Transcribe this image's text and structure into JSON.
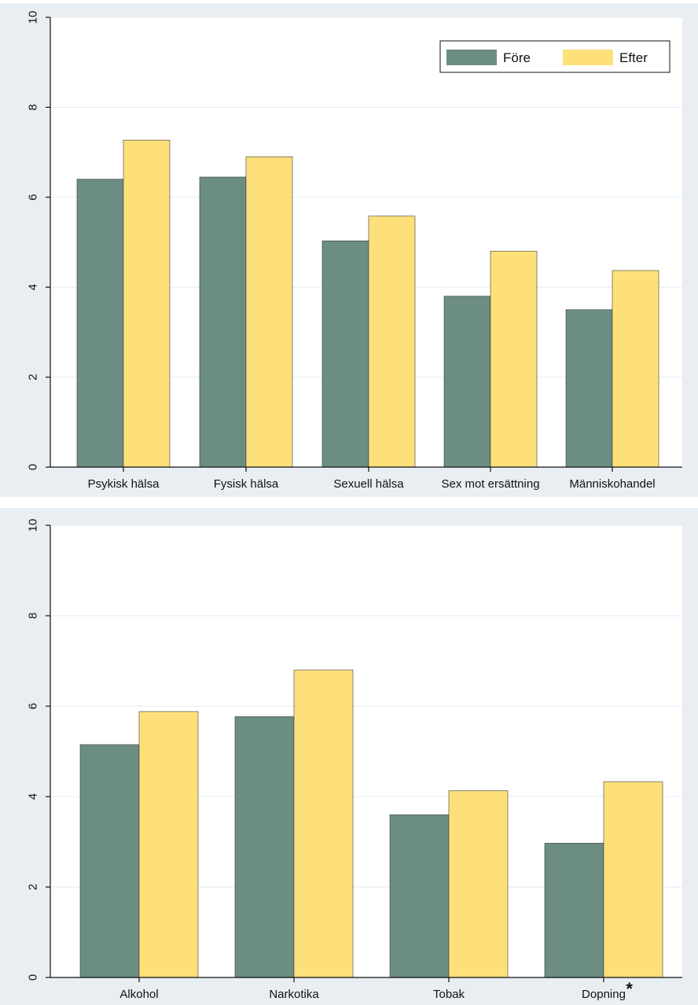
{
  "colors": {
    "fore": "#6b8d82",
    "efter": "#fde07a",
    "panel_bg": "#e9eef2",
    "plot_bg": "#ffffff",
    "grid": "#e6eaee",
    "axis": "#111111"
  },
  "chart_data": [
    {
      "type": "bar",
      "categories": [
        "Psykisk hälsa",
        "Fysisk hälsa",
        "Sexuell hälsa",
        "Sex mot ersättning",
        "Människohandel"
      ],
      "series": [
        {
          "name": "Före",
          "values": [
            6.4,
            6.45,
            5.03,
            3.8,
            3.5
          ]
        },
        {
          "name": "Efter",
          "values": [
            7.27,
            6.9,
            5.58,
            4.8,
            4.37
          ]
        }
      ],
      "ylim": [
        0,
        10
      ],
      "yticks": [
        "0",
        "2",
        "4",
        "6",
        "8",
        "10"
      ],
      "grid": true,
      "legend": "top-right",
      "title": "",
      "xlabel": "",
      "ylabel": ""
    },
    {
      "type": "bar",
      "categories": [
        "Alkohol",
        "Narkotika",
        "Tobak",
        "Dopning"
      ],
      "category_marks": [
        "",
        "",
        "",
        "*"
      ],
      "series": [
        {
          "name": "Före",
          "values": [
            5.15,
            5.77,
            3.6,
            2.97
          ]
        },
        {
          "name": "Efter",
          "values": [
            5.88,
            6.8,
            4.13,
            4.33
          ]
        }
      ],
      "ylim": [
        0,
        10
      ],
      "yticks": [
        "0",
        "2",
        "4",
        "6",
        "8",
        "10"
      ],
      "grid": true,
      "title": "",
      "xlabel": "",
      "ylabel": ""
    }
  ]
}
